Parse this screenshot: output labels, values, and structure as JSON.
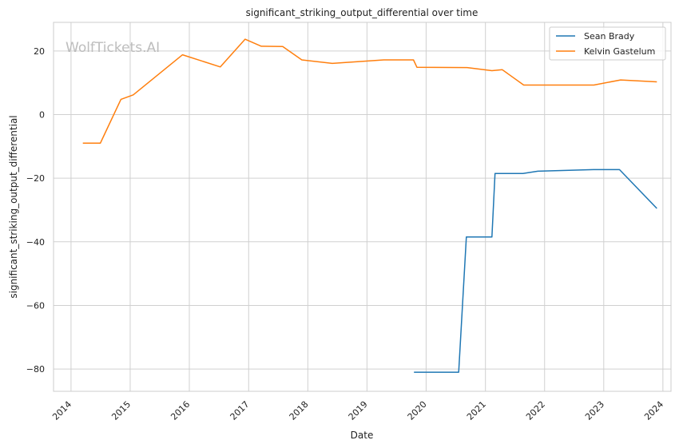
{
  "chart_data": {
    "type": "line",
    "title": "significant_striking_output_differential over time",
    "xlabel": "Date",
    "ylabel": "significant_striking_output_differential",
    "watermark": "WolfTickets.AI",
    "x_ticks": [
      "2014",
      "2015",
      "2016",
      "2017",
      "2018",
      "2019",
      "2020",
      "2021",
      "2022",
      "2023",
      "2024"
    ],
    "y_ticks": [
      "20",
      "0",
      "−20",
      "−40",
      "−60",
      "−80"
    ],
    "xlim": [
      "2013-09-15",
      "2024-02-20"
    ],
    "ylim": [
      -87,
      29
    ],
    "grid": true,
    "legend_position": "top-right",
    "series": [
      {
        "name": "Sean Brady",
        "color": "#1f77b4",
        "points": [
          [
            "2019-10-18",
            -81
          ],
          [
            "2020-07-20",
            -81
          ],
          [
            "2020-09-05",
            -38.5
          ],
          [
            "2021-02-10",
            -38.5
          ],
          [
            "2021-03-01",
            -18.5
          ],
          [
            "2021-08-20",
            -18.5
          ],
          [
            "2021-11-20",
            -17.8
          ],
          [
            "2022-10-30",
            -17.3
          ],
          [
            "2023-04-08",
            -17.3
          ],
          [
            "2023-11-25",
            -29.5
          ]
        ]
      },
      {
        "name": "Kelvin Gastelum",
        "color": "#ff7f0e",
        "points": [
          [
            "2014-03-15",
            -9
          ],
          [
            "2014-07-01",
            -9
          ],
          [
            "2014-11-05",
            4.8
          ],
          [
            "2015-01-20",
            6.2
          ],
          [
            "2015-11-20",
            18.8
          ],
          [
            "2016-07-10",
            15
          ],
          [
            "2016-12-10",
            23.7
          ],
          [
            "2017-03-20",
            21.5
          ],
          [
            "2017-07-30",
            21.4
          ],
          [
            "2017-11-25",
            17.2
          ],
          [
            "2018-06-01",
            16.1
          ],
          [
            "2019-04-15",
            17.2
          ],
          [
            "2019-10-15",
            17.2
          ],
          [
            "2019-11-05",
            14.9
          ],
          [
            "2020-09-10",
            14.8
          ],
          [
            "2021-02-10",
            13.8
          ],
          [
            "2021-04-15",
            14.1
          ],
          [
            "2021-08-25",
            9.3
          ],
          [
            "2022-11-01",
            9.3
          ],
          [
            "2023-04-15",
            10.9
          ],
          [
            "2023-11-25",
            10.3
          ]
        ]
      }
    ]
  }
}
